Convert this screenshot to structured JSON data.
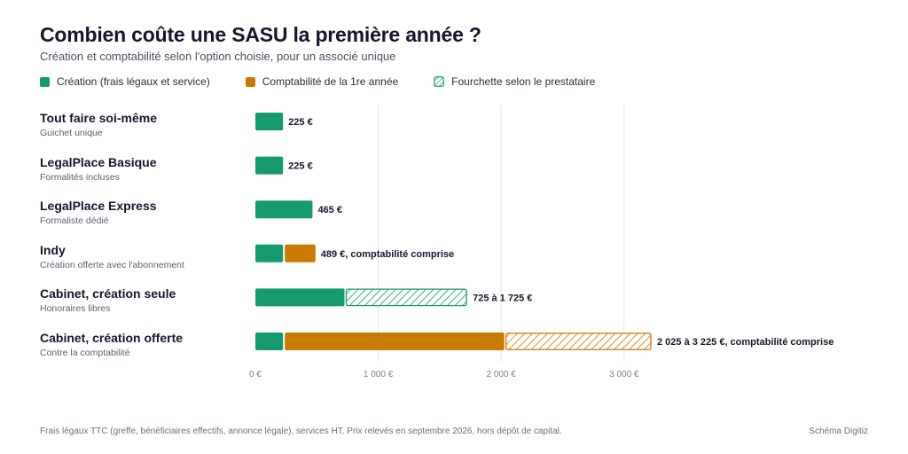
{
  "title": "Combien coûte une SASU la première année ?",
  "subtitle": "Création et comptabilité selon l'option choisie, pour un associé unique",
  "legend": [
    {
      "key": "creation",
      "label": "Création (frais légaux et service)",
      "color": "#159a6e",
      "pattern": false
    },
    {
      "key": "compta",
      "label": "Comptabilité de la 1re année",
      "color": "#c97a00",
      "pattern": false
    },
    {
      "key": "range",
      "label": "Fourchette selon le prestataire",
      "color": "#159a6e",
      "pattern": true
    }
  ],
  "rows": [
    {
      "name": "Tout faire soi-même",
      "sub": "Guichet unique"
    },
    {
      "name": "LegalPlace Basique",
      "sub": "Formalités incluses"
    },
    {
      "name": "LegalPlace Express",
      "sub": "Formaliste dédié"
    },
    {
      "name": "Indy",
      "sub": "Création offerte avec l'abonnement"
    },
    {
      "name": "Cabinet, création seule",
      "sub": "Honoraires libres"
    },
    {
      "name": "Cabinet, création offerte",
      "sub": "Contre la comptabilité"
    }
  ],
  "chart_data": {
    "type": "bar",
    "orientation": "horizontal",
    "stacked": true,
    "title": "Combien coûte une SASU la première année ?",
    "subtitle": "Création et comptabilité selon l'option choisie, pour un associé unique",
    "categories": [
      "Tout faire soi-même",
      "LegalPlace Basique",
      "LegalPlace Express",
      "Indy",
      "Cabinet, création seule",
      "Cabinet, création offerte"
    ],
    "xlim": [
      0,
      3300
    ],
    "xticks": [
      0,
      1000,
      2000,
      3000
    ],
    "xtick_labels": [
      "0 €",
      "1 000 €",
      "2 000 €",
      "3 000 €"
    ],
    "grid": "vertical",
    "legend_position": "top-left",
    "series": [
      {
        "name": "Création (frais légaux et service)",
        "color": "#159a6e",
        "values": [
          225,
          225,
          465,
          225,
          725,
          225
        ]
      },
      {
        "name": "Comptabilité de la 1re année",
        "color": "#c97a00",
        "values": [
          0,
          0,
          0,
          264,
          0,
          1800
        ]
      },
      {
        "name": "Fourchette selon le prestataire",
        "pattern": "hatched",
        "values": [
          0,
          0,
          0,
          0,
          1000,
          1200
        ],
        "row_colors": [
          "#159a6e",
          "#159a6e",
          "#159a6e",
          "#159a6e",
          "#159a6e",
          "#c97a00"
        ]
      }
    ],
    "data_labels": [
      "225 €",
      "225 €",
      "465 €",
      "489 €, comptabilité comprise",
      "725 à 1 725 €",
      "2 025 à 3 225 €, comptabilité comprise"
    ]
  },
  "footnote": "Frais légaux TTC (greffe, bénéficiaires effectifs, annonce légale), services HT. Prix relevés en septembre 2026, hors dépôt de capital.",
  "credit": "Schéma Digitiz"
}
